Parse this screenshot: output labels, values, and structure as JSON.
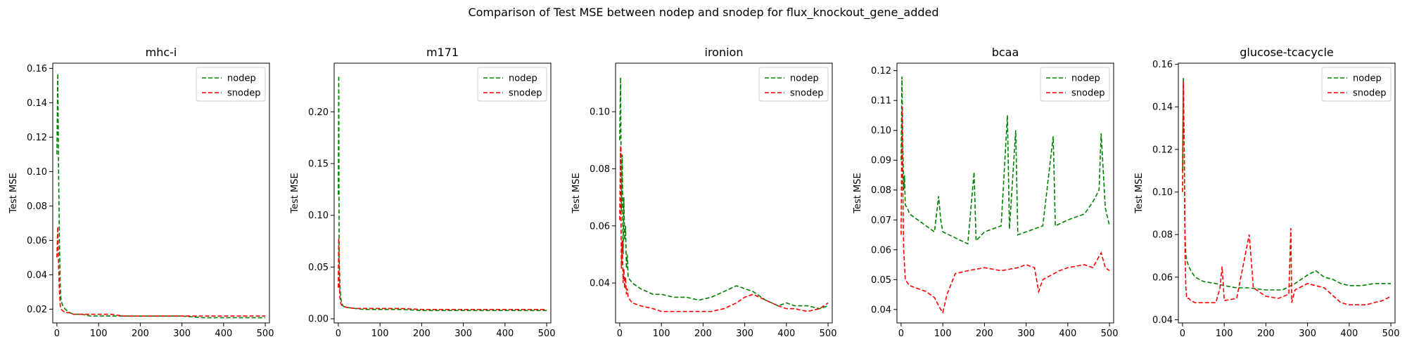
{
  "figure": {
    "suptitle": "Comparison of Test MSE between nodep and snodep for flux_knockout_gene_added"
  },
  "colors": {
    "nodep": "#008000",
    "snodep": "#ff0000",
    "axis": "#000000"
  },
  "chart_data": [
    {
      "type": "line",
      "title": "mhc-i",
      "xlabel": "",
      "ylabel": "Test MSE",
      "xlim": [
        -10,
        510
      ],
      "ylim": [
        0.012,
        0.163
      ],
      "xticks": [
        0,
        100,
        200,
        300,
        400,
        500
      ],
      "yticks": [
        0.02,
        0.04,
        0.06,
        0.08,
        0.1,
        0.12,
        0.14,
        0.16
      ],
      "ytick_labels": [
        "0.02",
        "0.04",
        "0.06",
        "0.08",
        "0.10",
        "0.12",
        "0.14",
        "0.16"
      ],
      "legend": "top-right",
      "grid": false,
      "series": [
        {
          "name": "nodep",
          "style": "dashed",
          "x": [
            0,
            2,
            4,
            6,
            8,
            10,
            14,
            20,
            30,
            40,
            60,
            80,
            100,
            130,
            160,
            200,
            250,
            300,
            350,
            400,
            450,
            500
          ],
          "values": [
            0.11,
            0.157,
            0.1,
            0.06,
            0.032,
            0.025,
            0.022,
            0.02,
            0.018,
            0.017,
            0.017,
            0.016,
            0.016,
            0.016,
            0.016,
            0.016,
            0.016,
            0.016,
            0.015,
            0.015,
            0.015,
            0.015
          ]
        },
        {
          "name": "snodep",
          "style": "dashed",
          "x": [
            0,
            2,
            4,
            6,
            8,
            10,
            14,
            20,
            30,
            40,
            60,
            80,
            100,
            130,
            160,
            200,
            250,
            300,
            350,
            400,
            450,
            500
          ],
          "values": [
            0.05,
            0.068,
            0.045,
            0.03,
            0.022,
            0.02,
            0.019,
            0.018,
            0.018,
            0.017,
            0.017,
            0.017,
            0.017,
            0.017,
            0.016,
            0.016,
            0.016,
            0.016,
            0.016,
            0.016,
            0.016,
            0.016
          ]
        }
      ]
    },
    {
      "type": "line",
      "title": "m171",
      "xlabel": "",
      "ylabel": "Test MSE",
      "xlim": [
        -10,
        510
      ],
      "ylim": [
        -0.004,
        0.247
      ],
      "xticks": [
        0,
        100,
        200,
        300,
        400,
        500
      ],
      "yticks": [
        0.0,
        0.05,
        0.1,
        0.15,
        0.2
      ],
      "ytick_labels": [
        "0.00",
        "0.05",
        "0.10",
        "0.15",
        "0.20"
      ],
      "legend": "top-right",
      "grid": false,
      "series": [
        {
          "name": "nodep",
          "style": "dashed",
          "x": [
            0,
            1,
            2,
            4,
            6,
            8,
            12,
            20,
            40,
            60,
            100,
            150,
            200,
            250,
            300,
            350,
            400,
            450,
            500
          ],
          "values": [
            0.12,
            0.235,
            0.06,
            0.03,
            0.02,
            0.015,
            0.012,
            0.011,
            0.01,
            0.009,
            0.009,
            0.009,
            0.008,
            0.008,
            0.008,
            0.008,
            0.008,
            0.008,
            0.008
          ]
        },
        {
          "name": "snodep",
          "style": "dashed",
          "x": [
            0,
            1,
            2,
            4,
            6,
            8,
            12,
            20,
            40,
            60,
            100,
            150,
            200,
            250,
            300,
            350,
            400,
            450,
            500
          ],
          "values": [
            0.03,
            0.078,
            0.035,
            0.02,
            0.015,
            0.013,
            0.012,
            0.011,
            0.01,
            0.01,
            0.01,
            0.01,
            0.009,
            0.009,
            0.009,
            0.009,
            0.009,
            0.009,
            0.009
          ]
        }
      ]
    },
    {
      "type": "line",
      "title": "ironion",
      "xlabel": "",
      "ylabel": "Test MSE",
      "xlim": [
        -10,
        510
      ],
      "ylim": [
        0.026,
        0.117
      ],
      "xticks": [
        0,
        100,
        200,
        300,
        400,
        500
      ],
      "yticks": [
        0.04,
        0.06,
        0.08,
        0.1
      ],
      "ytick_labels": [
        "0.04",
        "0.06",
        "0.08",
        "0.10"
      ],
      "legend": "top-right",
      "grid": false,
      "series": [
        {
          "name": "nodep",
          "style": "dashed",
          "x": [
            0,
            2,
            4,
            6,
            8,
            10,
            12,
            14,
            16,
            18,
            20,
            25,
            30,
            50,
            80,
            100,
            130,
            160,
            190,
            220,
            250,
            280,
            300,
            320,
            350,
            380,
            400,
            420,
            450,
            480,
            500
          ],
          "values": [
            0.09,
            0.112,
            0.065,
            0.085,
            0.05,
            0.07,
            0.055,
            0.06,
            0.045,
            0.05,
            0.042,
            0.041,
            0.04,
            0.038,
            0.036,
            0.036,
            0.035,
            0.035,
            0.034,
            0.035,
            0.037,
            0.039,
            0.038,
            0.037,
            0.034,
            0.032,
            0.033,
            0.032,
            0.032,
            0.031,
            0.032
          ]
        },
        {
          "name": "snodep",
          "style": "dashed",
          "x": [
            0,
            2,
            4,
            6,
            8,
            10,
            12,
            14,
            16,
            18,
            20,
            25,
            30,
            50,
            80,
            100,
            130,
            160,
            190,
            220,
            250,
            280,
            300,
            320,
            350,
            380,
            400,
            420,
            450,
            480,
            500
          ],
          "values": [
            0.062,
            0.088,
            0.045,
            0.055,
            0.04,
            0.045,
            0.038,
            0.042,
            0.036,
            0.038,
            0.035,
            0.034,
            0.033,
            0.032,
            0.031,
            0.03,
            0.03,
            0.03,
            0.03,
            0.03,
            0.031,
            0.033,
            0.035,
            0.036,
            0.034,
            0.032,
            0.031,
            0.031,
            0.03,
            0.031,
            0.033
          ]
        }
      ]
    },
    {
      "type": "line",
      "title": "bcaa",
      "xlabel": "",
      "ylabel": "Test MSE",
      "xlim": [
        -10,
        510
      ],
      "ylim": [
        0.0355,
        0.1225
      ],
      "xticks": [
        0,
        100,
        200,
        300,
        400,
        500
      ],
      "yticks": [
        0.04,
        0.05,
        0.06,
        0.07,
        0.08,
        0.09,
        0.1,
        0.11,
        0.12
      ],
      "ytick_labels": [
        "0.04",
        "0.05",
        "0.06",
        "0.07",
        "0.08",
        "0.09",
        "0.10",
        "0.11",
        "0.12"
      ],
      "legend": "top-right",
      "grid": false,
      "series": [
        {
          "name": "nodep",
          "style": "dashed",
          "x": [
            0,
            2,
            4,
            6,
            8,
            10,
            15,
            20,
            40,
            60,
            80,
            90,
            95,
            100,
            130,
            160,
            175,
            180,
            200,
            240,
            255,
            260,
            275,
            280,
            300,
            340,
            365,
            370,
            400,
            440,
            460,
            475,
            480,
            490,
            500
          ],
          "values": [
            0.09,
            0.118,
            0.095,
            0.08,
            0.085,
            0.075,
            0.074,
            0.072,
            0.07,
            0.068,
            0.066,
            0.078,
            0.07,
            0.066,
            0.064,
            0.062,
            0.086,
            0.063,
            0.066,
            0.068,
            0.105,
            0.067,
            0.1,
            0.065,
            0.066,
            0.068,
            0.098,
            0.068,
            0.07,
            0.072,
            0.076,
            0.08,
            0.099,
            0.074,
            0.068
          ]
        },
        {
          "name": "snodep",
          "style": "dashed",
          "x": [
            0,
            2,
            4,
            6,
            8,
            10,
            15,
            20,
            40,
            60,
            80,
            95,
            100,
            110,
            130,
            160,
            200,
            240,
            280,
            300,
            320,
            330,
            340,
            380,
            400,
            440,
            460,
            480,
            490,
            500
          ],
          "values": [
            0.065,
            0.108,
            0.08,
            0.06,
            0.055,
            0.05,
            0.049,
            0.048,
            0.047,
            0.046,
            0.044,
            0.04,
            0.039,
            0.045,
            0.052,
            0.053,
            0.054,
            0.053,
            0.054,
            0.055,
            0.054,
            0.046,
            0.05,
            0.053,
            0.054,
            0.055,
            0.054,
            0.059,
            0.054,
            0.053
          ]
        }
      ]
    },
    {
      "type": "line",
      "title": "glucose-tcacycle",
      "xlabel": "",
      "ylabel": "Test MSE",
      "xlim": [
        -10,
        510
      ],
      "ylim": [
        0.0385,
        0.1605
      ],
      "xticks": [
        0,
        100,
        200,
        300,
        400,
        500
      ],
      "yticks": [
        0.04,
        0.06,
        0.08,
        0.1,
        0.12,
        0.14,
        0.16
      ],
      "ytick_labels": [
        "0.04",
        "0.06",
        "0.08",
        "0.10",
        "0.12",
        "0.14",
        "0.16"
      ],
      "legend": "top-right",
      "grid": false,
      "series": [
        {
          "name": "nodep",
          "style": "dashed",
          "x": [
            0,
            2,
            4,
            6,
            8,
            10,
            15,
            20,
            30,
            50,
            80,
            100,
            130,
            160,
            200,
            240,
            270,
            300,
            320,
            340,
            360,
            380,
            400,
            430,
            460,
            500
          ],
          "values": [
            0.11,
            0.154,
            0.12,
            0.08,
            0.07,
            0.068,
            0.065,
            0.063,
            0.06,
            0.058,
            0.057,
            0.056,
            0.055,
            0.055,
            0.054,
            0.054,
            0.057,
            0.061,
            0.063,
            0.06,
            0.059,
            0.057,
            0.056,
            0.056,
            0.057,
            0.057
          ]
        },
        {
          "name": "snodep",
          "style": "dashed",
          "x": [
            0,
            2,
            4,
            6,
            8,
            10,
            15,
            20,
            30,
            50,
            80,
            90,
            95,
            100,
            130,
            150,
            160,
            170,
            200,
            230,
            255,
            260,
            262,
            270,
            300,
            340,
            380,
            400,
            440,
            480,
            500
          ],
          "values": [
            0.1,
            0.152,
            0.12,
            0.07,
            0.055,
            0.05,
            0.05,
            0.049,
            0.048,
            0.048,
            0.048,
            0.055,
            0.065,
            0.049,
            0.05,
            0.07,
            0.08,
            0.055,
            0.051,
            0.05,
            0.052,
            0.083,
            0.048,
            0.054,
            0.057,
            0.055,
            0.048,
            0.047,
            0.047,
            0.049,
            0.051
          ]
        }
      ]
    }
  ]
}
